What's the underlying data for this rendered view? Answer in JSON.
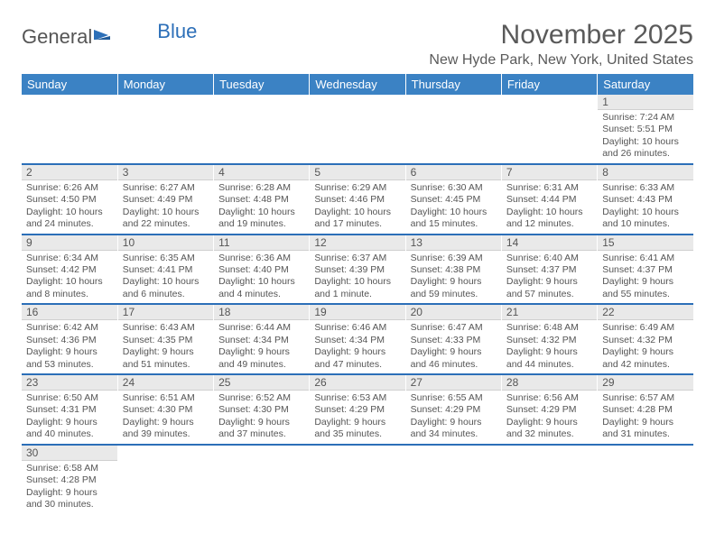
{
  "logo": {
    "text_left": "General",
    "text_right": "Blue"
  },
  "title": "November 2025",
  "location": "New Hyde Park, New York, United States",
  "header_bg": "#3b82c4",
  "border_color": "#2c6fb8",
  "day_headers": [
    "Sunday",
    "Monday",
    "Tuesday",
    "Wednesday",
    "Thursday",
    "Friday",
    "Saturday"
  ],
  "weeks": [
    [
      null,
      null,
      null,
      null,
      null,
      null,
      {
        "n": "1",
        "sr": "7:24 AM",
        "ss": "5:51 PM",
        "dl": "10 hours and 26 minutes."
      }
    ],
    [
      {
        "n": "2",
        "sr": "6:26 AM",
        "ss": "4:50 PM",
        "dl": "10 hours and 24 minutes."
      },
      {
        "n": "3",
        "sr": "6:27 AM",
        "ss": "4:49 PM",
        "dl": "10 hours and 22 minutes."
      },
      {
        "n": "4",
        "sr": "6:28 AM",
        "ss": "4:48 PM",
        "dl": "10 hours and 19 minutes."
      },
      {
        "n": "5",
        "sr": "6:29 AM",
        "ss": "4:46 PM",
        "dl": "10 hours and 17 minutes."
      },
      {
        "n": "6",
        "sr": "6:30 AM",
        "ss": "4:45 PM",
        "dl": "10 hours and 15 minutes."
      },
      {
        "n": "7",
        "sr": "6:31 AM",
        "ss": "4:44 PM",
        "dl": "10 hours and 12 minutes."
      },
      {
        "n": "8",
        "sr": "6:33 AM",
        "ss": "4:43 PM",
        "dl": "10 hours and 10 minutes."
      }
    ],
    [
      {
        "n": "9",
        "sr": "6:34 AM",
        "ss": "4:42 PM",
        "dl": "10 hours and 8 minutes."
      },
      {
        "n": "10",
        "sr": "6:35 AM",
        "ss": "4:41 PM",
        "dl": "10 hours and 6 minutes."
      },
      {
        "n": "11",
        "sr": "6:36 AM",
        "ss": "4:40 PM",
        "dl": "10 hours and 4 minutes."
      },
      {
        "n": "12",
        "sr": "6:37 AM",
        "ss": "4:39 PM",
        "dl": "10 hours and 1 minute."
      },
      {
        "n": "13",
        "sr": "6:39 AM",
        "ss": "4:38 PM",
        "dl": "9 hours and 59 minutes."
      },
      {
        "n": "14",
        "sr": "6:40 AM",
        "ss": "4:37 PM",
        "dl": "9 hours and 57 minutes."
      },
      {
        "n": "15",
        "sr": "6:41 AM",
        "ss": "4:37 PM",
        "dl": "9 hours and 55 minutes."
      }
    ],
    [
      {
        "n": "16",
        "sr": "6:42 AM",
        "ss": "4:36 PM",
        "dl": "9 hours and 53 minutes."
      },
      {
        "n": "17",
        "sr": "6:43 AM",
        "ss": "4:35 PM",
        "dl": "9 hours and 51 minutes."
      },
      {
        "n": "18",
        "sr": "6:44 AM",
        "ss": "4:34 PM",
        "dl": "9 hours and 49 minutes."
      },
      {
        "n": "19",
        "sr": "6:46 AM",
        "ss": "4:34 PM",
        "dl": "9 hours and 47 minutes."
      },
      {
        "n": "20",
        "sr": "6:47 AM",
        "ss": "4:33 PM",
        "dl": "9 hours and 46 minutes."
      },
      {
        "n": "21",
        "sr": "6:48 AM",
        "ss": "4:32 PM",
        "dl": "9 hours and 44 minutes."
      },
      {
        "n": "22",
        "sr": "6:49 AM",
        "ss": "4:32 PM",
        "dl": "9 hours and 42 minutes."
      }
    ],
    [
      {
        "n": "23",
        "sr": "6:50 AM",
        "ss": "4:31 PM",
        "dl": "9 hours and 40 minutes."
      },
      {
        "n": "24",
        "sr": "6:51 AM",
        "ss": "4:30 PM",
        "dl": "9 hours and 39 minutes."
      },
      {
        "n": "25",
        "sr": "6:52 AM",
        "ss": "4:30 PM",
        "dl": "9 hours and 37 minutes."
      },
      {
        "n": "26",
        "sr": "6:53 AM",
        "ss": "4:29 PM",
        "dl": "9 hours and 35 minutes."
      },
      {
        "n": "27",
        "sr": "6:55 AM",
        "ss": "4:29 PM",
        "dl": "9 hours and 34 minutes."
      },
      {
        "n": "28",
        "sr": "6:56 AM",
        "ss": "4:29 PM",
        "dl": "9 hours and 32 minutes."
      },
      {
        "n": "29",
        "sr": "6:57 AM",
        "ss": "4:28 PM",
        "dl": "9 hours and 31 minutes."
      }
    ],
    [
      {
        "n": "30",
        "sr": "6:58 AM",
        "ss": "4:28 PM",
        "dl": "9 hours and 30 minutes."
      },
      null,
      null,
      null,
      null,
      null,
      null
    ]
  ],
  "labels": {
    "sunrise": "Sunrise: ",
    "sunset": "Sunset: ",
    "daylight": "Daylight: "
  }
}
